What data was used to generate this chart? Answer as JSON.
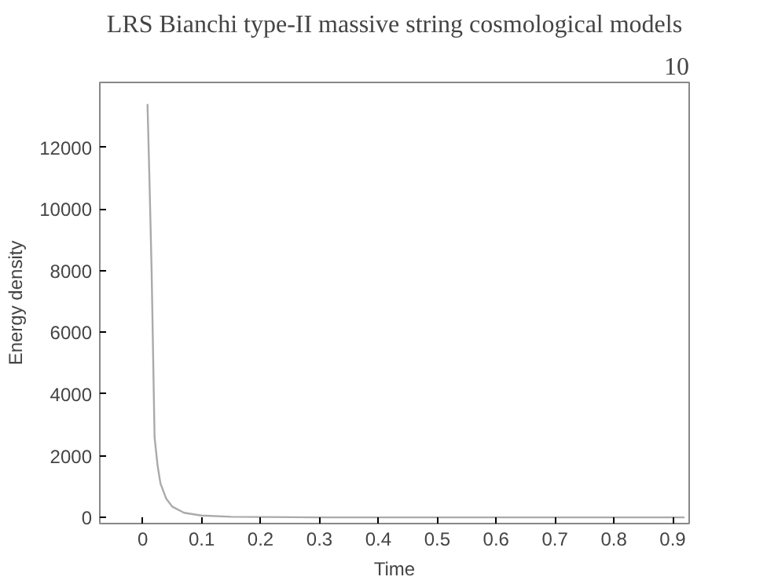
{
  "chart_data": {
    "type": "line",
    "title": "LRS Bianchi type-II massive string cosmological models",
    "annotations": [
      "10"
    ],
    "xlabel": "Time",
    "ylabel": "Energy density",
    "x": [
      0.008,
      0.011,
      0.015,
      0.02,
      0.025,
      0.03,
      0.04,
      0.05,
      0.07,
      0.1,
      0.15,
      0.3,
      0.5,
      0.92
    ],
    "series": [
      {
        "color": "#aaaaaa",
        "values": [
          13400,
          11200,
          8000,
          2600,
          1700,
          1100,
          600,
          350,
          150,
          60,
          20,
          0,
          0,
          0
        ]
      }
    ],
    "xlim": [
      -0.073,
      0.928
    ],
    "ylim": [
      -200,
      14100
    ],
    "xticks": [
      0,
      0.1,
      0.2,
      0.3,
      0.4,
      0.5,
      0.6,
      0.7,
      0.8,
      0.9
    ],
    "yticks": [
      0,
      2000,
      4000,
      6000,
      8000,
      10000,
      12000
    ],
    "grid": false,
    "marker": "none",
    "line_style": "solid"
  }
}
